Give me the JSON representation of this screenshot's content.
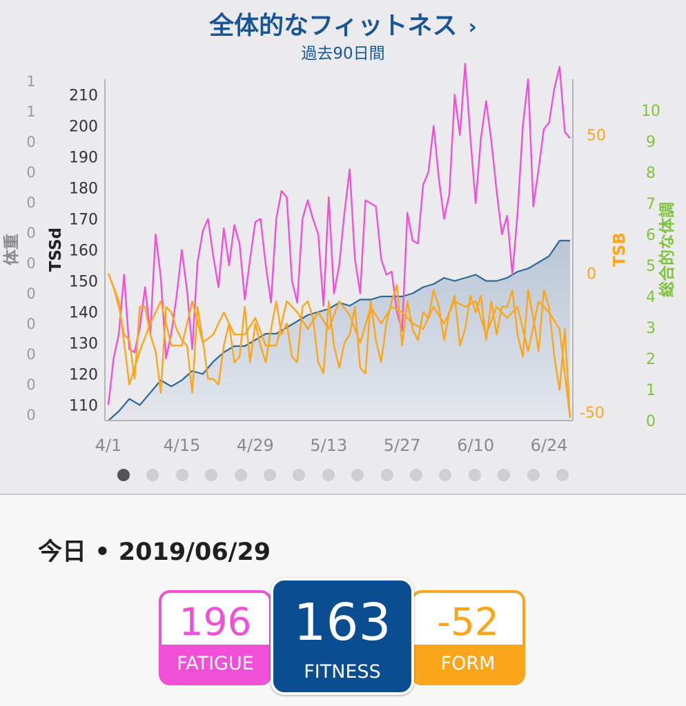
{
  "header": {
    "title": "全体的なフィットネス",
    "chevron": "›",
    "subtitle": "過去90日間"
  },
  "colors": {
    "fitness": "#2e6896",
    "fatigue": "#f24fd9",
    "form": "#fba61a",
    "wellness": "#7ec33c",
    "title": "#1a5596"
  },
  "chart_data": {
    "type": "line",
    "x_tick_labels": [
      "4/1",
      "4/15",
      "4/29",
      "5/13",
      "5/27",
      "6/10",
      "6/24"
    ],
    "x_tick_days": [
      0,
      14,
      28,
      42,
      56,
      70,
      84
    ],
    "axes": {
      "weight": {
        "label": "体重",
        "tick_labels": [
          "1",
          "1",
          "0",
          "0",
          "0",
          "0",
          "0",
          "0",
          "0",
          "0",
          "0",
          "0"
        ]
      },
      "tssd": {
        "label": "TSSd",
        "ylim": [
          105,
          215
        ],
        "ticks": [
          110,
          120,
          130,
          140,
          150,
          160,
          170,
          180,
          190,
          200,
          210
        ]
      },
      "tsb": {
        "label": "TSB",
        "ylim": [
          -53,
          70
        ],
        "ticks": [
          50,
          0,
          -50
        ]
      },
      "wellness": {
        "label": "総合的な体調",
        "ylim": [
          0,
          11
        ],
        "ticks": [
          0,
          1,
          2,
          3,
          4,
          5,
          6,
          7,
          8,
          9,
          10
        ]
      }
    },
    "series": [
      {
        "name": "FITNESS",
        "axis": "tssd",
        "color": "#2e6896",
        "fill": true,
        "x": [
          0,
          2,
          4,
          6,
          8,
          10,
          12,
          14,
          16,
          18,
          20,
          22,
          24,
          26,
          28,
          30,
          32,
          34,
          36,
          38,
          40,
          42,
          44,
          46,
          48,
          50,
          52,
          54,
          56,
          58,
          60,
          62,
          64,
          66,
          68,
          70,
          72,
          74,
          76,
          78,
          80,
          82,
          84,
          86,
          88
        ],
        "values": [
          105,
          108,
          112,
          110,
          114,
          118,
          116,
          118,
          121,
          120,
          124,
          127,
          129,
          129,
          131,
          133,
          133,
          135,
          137,
          139,
          140,
          141,
          143,
          142,
          144,
          144,
          145,
          145,
          145,
          146,
          148,
          149,
          151,
          150,
          151,
          152,
          150,
          150,
          151,
          153,
          154,
          156,
          158,
          163,
          163
        ]
      },
      {
        "name": "FATIGUE",
        "axis": "tssd",
        "color": "#f24fd9",
        "x": [
          0,
          1,
          2,
          3,
          4,
          5,
          6,
          7,
          8,
          9,
          10,
          11,
          12,
          13,
          14,
          15,
          16,
          17,
          18,
          19,
          20,
          21,
          22,
          23,
          24,
          25,
          26,
          27,
          28,
          29,
          30,
          31,
          32,
          33,
          34,
          35,
          36,
          37,
          38,
          39,
          40,
          41,
          42,
          43,
          44,
          45,
          46,
          47,
          48,
          49,
          50,
          51,
          52,
          53,
          54,
          55,
          56,
          57,
          58,
          59,
          60,
          61,
          62,
          63,
          64,
          65,
          66,
          67,
          68,
          69,
          70,
          71,
          72,
          73,
          74,
          75,
          76,
          77,
          78,
          79,
          80,
          81,
          82,
          83,
          84,
          85,
          86,
          87,
          88
        ],
        "values": [
          110,
          125,
          133,
          152,
          128,
          127,
          135,
          148,
          133,
          165,
          151,
          125,
          133,
          145,
          160,
          147,
          128,
          156,
          166,
          170,
          158,
          148,
          167,
          155,
          168,
          162,
          144,
          157,
          169,
          170,
          155,
          143,
          170,
          179,
          177,
          150,
          143,
          170,
          176,
          170,
          165,
          142,
          177,
          146,
          155,
          172,
          186,
          157,
          146,
          176,
          175,
          174,
          157,
          152,
          153,
          140,
          134,
          172,
          163,
          162,
          181,
          185,
          200,
          183,
          170,
          178,
          210,
          197,
          220,
          196,
          175,
          196,
          208,
          195,
          179,
          165,
          171,
          152,
          172,
          200,
          215,
          174,
          186,
          199,
          201,
          212,
          219,
          198,
          196
        ]
      },
      {
        "name": "FORM",
        "axis": "tsb",
        "color": "#fba61a",
        "x": [
          0,
          2,
          4,
          6,
          8,
          10,
          12,
          14,
          16,
          18,
          20,
          22,
          24,
          26,
          28,
          30,
          32,
          34,
          36,
          38,
          40,
          42,
          44,
          46,
          48,
          50,
          52,
          54,
          56,
          58,
          60,
          62,
          64,
          66,
          68,
          70,
          72,
          74,
          76,
          78,
          80,
          82,
          84,
          86,
          88
        ],
        "values": [
          0,
          -10,
          -40,
          -28,
          -18,
          -10,
          -26,
          -26,
          -10,
          -25,
          -22,
          -14,
          -22,
          -22,
          -16,
          -26,
          -26,
          -10,
          -14,
          -20,
          -14,
          -20,
          -10,
          -15,
          -25,
          -12,
          -18,
          -12,
          -14,
          -18,
          -20,
          -12,
          -18,
          -10,
          -12,
          -10,
          -22,
          -12,
          -16,
          -12,
          -28,
          -10,
          -14,
          -20,
          -52
        ]
      },
      {
        "name": "FORM",
        "axis": "tsb",
        "color": "#fba61a",
        "x": [
          0,
          1,
          2,
          3,
          4,
          5,
          6,
          7,
          8,
          9,
          10,
          11,
          12,
          13,
          14,
          15,
          16,
          17,
          18,
          19,
          20,
          21,
          22,
          23,
          24,
          25,
          26,
          27,
          28,
          29,
          30,
          31,
          32,
          33,
          34,
          35,
          36,
          37,
          38,
          39,
          40,
          41,
          42,
          43,
          44,
          45,
          46,
          47,
          48,
          49,
          50,
          51,
          52,
          53,
          54,
          55,
          56,
          57,
          58,
          59,
          60,
          61,
          62,
          63,
          64,
          65,
          66,
          67,
          68,
          69,
          70,
          71,
          72,
          73,
          74,
          75,
          76,
          77,
          78,
          79,
          80,
          81,
          82,
          83,
          84,
          85,
          86,
          87,
          88
        ],
        "values": [
          0,
          -5,
          -12,
          -22,
          -24,
          -38,
          -12,
          -12,
          -22,
          -28,
          -43,
          -12,
          -14,
          -20,
          -24,
          -26,
          -43,
          -12,
          -24,
          -38,
          -38,
          -40,
          -26,
          -18,
          -32,
          -30,
          -12,
          -32,
          -18,
          -26,
          -32,
          -20,
          -10,
          -22,
          -18,
          -30,
          -32,
          -12,
          -10,
          -16,
          -32,
          -36,
          -10,
          -26,
          -34,
          -25,
          -22,
          -12,
          -34,
          -36,
          -10,
          -24,
          -32,
          -18,
          -10,
          -4,
          -26,
          -10,
          -20,
          -24,
          -14,
          -16,
          -6,
          -12,
          -24,
          -14,
          -8,
          -26,
          -20,
          -8,
          -14,
          -8,
          -24,
          -10,
          -22,
          -12,
          -12,
          -6,
          -22,
          -30,
          -6,
          -16,
          -28,
          -6,
          -12,
          -30,
          -42,
          -20,
          -52
        ]
      }
    ]
  },
  "pager": {
    "count": 16,
    "active_index": 0
  },
  "today": {
    "label": "今日",
    "separator": "•",
    "date": "2019/06/29"
  },
  "metrics": {
    "fatigue": {
      "value": "196",
      "label": "FATIGUE"
    },
    "fitness": {
      "value": "163",
      "label": "FITNESS"
    },
    "form": {
      "value": "-52",
      "label": "FORM"
    }
  }
}
